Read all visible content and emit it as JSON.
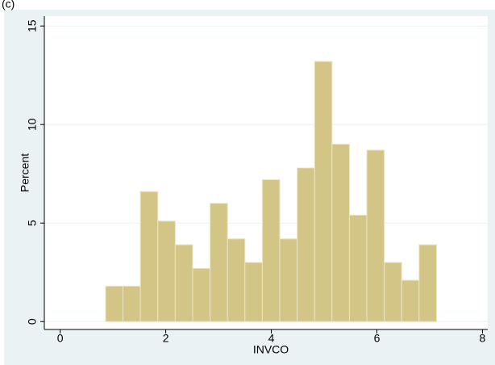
{
  "chart_data": {
    "type": "histogram",
    "panel_label": "(c)",
    "xlabel": "INVCO",
    "ylabel": "Percent",
    "bins": [
      0.86,
      1.19,
      1.52,
      1.85,
      2.18,
      2.51,
      2.84,
      3.17,
      3.5,
      3.83,
      4.16,
      4.49,
      4.82,
      5.15,
      5.48,
      5.81,
      6.14,
      6.47,
      6.8,
      7.13
    ],
    "values": [
      1.8,
      1.8,
      6.6,
      5.1,
      3.9,
      2.7,
      6.0,
      4.2,
      3.0,
      7.2,
      4.2,
      7.8,
      13.2,
      9.0,
      5.4,
      8.7,
      3.0,
      2.1,
      3.9
    ],
    "color": "#d3c585",
    "xlim": [
      -0.3,
      8.1
    ],
    "ylim": [
      -0.4,
      15.5
    ],
    "xticks": [
      0,
      2,
      4,
      6,
      8
    ],
    "yticks": [
      0,
      5,
      10,
      15
    ],
    "grid": true
  }
}
